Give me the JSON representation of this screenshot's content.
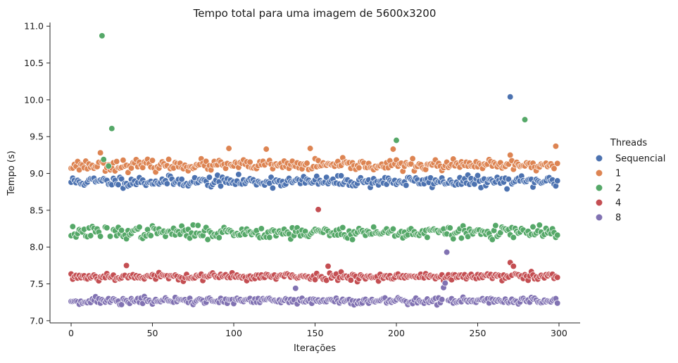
{
  "chart_data": {
    "type": "scatter",
    "title": "Tempo total para uma imagem de 5600x3200",
    "xlabel": "Iterações",
    "ylabel": "Tempo (s)",
    "xlim": [
      -13,
      313
    ],
    "ylim": [
      6.97,
      11.05
    ],
    "xticks": [
      0,
      50,
      100,
      150,
      200,
      250,
      300
    ],
    "yticks": [
      7.0,
      7.5,
      8.0,
      8.5,
      9.0,
      9.5,
      10.0,
      10.5,
      11.0
    ],
    "ytick_labels": [
      "7.0",
      "7.5",
      "8.0",
      "8.5",
      "9.0",
      "9.5",
      "10.0",
      "10.5",
      "11.0"
    ],
    "grid": false,
    "legend": {
      "title": "Threads",
      "position": "right"
    },
    "x_range": [
      0,
      299
    ],
    "series": [
      {
        "name": "Sequencial",
        "color": "#4c72b0",
        "base": 8.89,
        "spread": 0.065,
        "seed": 11,
        "outliers": [
          {
            "x": 270,
            "y": 10.04
          }
        ]
      },
      {
        "name": "1",
        "color": "#dd8452",
        "base": 9.11,
        "spread": 0.065,
        "seed": 23,
        "outliers": [
          {
            "x": 18,
            "y": 9.28
          },
          {
            "x": 97,
            "y": 9.34
          },
          {
            "x": 120,
            "y": 9.33
          },
          {
            "x": 147,
            "y": 9.34
          },
          {
            "x": 198,
            "y": 9.33
          },
          {
            "x": 270,
            "y": 9.25
          },
          {
            "x": 298,
            "y": 9.37
          }
        ]
      },
      {
        "name": "2",
        "color": "#55a868",
        "base": 8.2,
        "spread": 0.075,
        "seed": 37,
        "outliers": [
          {
            "x": 19,
            "y": 10.87
          },
          {
            "x": 25,
            "y": 9.61
          },
          {
            "x": 20,
            "y": 9.19
          },
          {
            "x": 200,
            "y": 9.45
          },
          {
            "x": 279,
            "y": 9.73
          },
          {
            "x": 23,
            "y": 9.1
          }
        ]
      },
      {
        "name": "4",
        "color": "#c44e52",
        "base": 7.6,
        "spread": 0.045,
        "seed": 53,
        "outliers": [
          {
            "x": 152,
            "y": 8.51
          },
          {
            "x": 34,
            "y": 7.75
          },
          {
            "x": 158,
            "y": 7.74
          },
          {
            "x": 270,
            "y": 7.79
          },
          {
            "x": 272,
            "y": 7.74
          }
        ]
      },
      {
        "name": "8",
        "color": "#8172b2",
        "base": 7.27,
        "spread": 0.045,
        "seed": 71,
        "outliers": [
          {
            "x": 231,
            "y": 7.93
          },
          {
            "x": 229,
            "y": 7.45
          },
          {
            "x": 230,
            "y": 7.51
          },
          {
            "x": 138,
            "y": 7.44
          }
        ]
      }
    ]
  }
}
